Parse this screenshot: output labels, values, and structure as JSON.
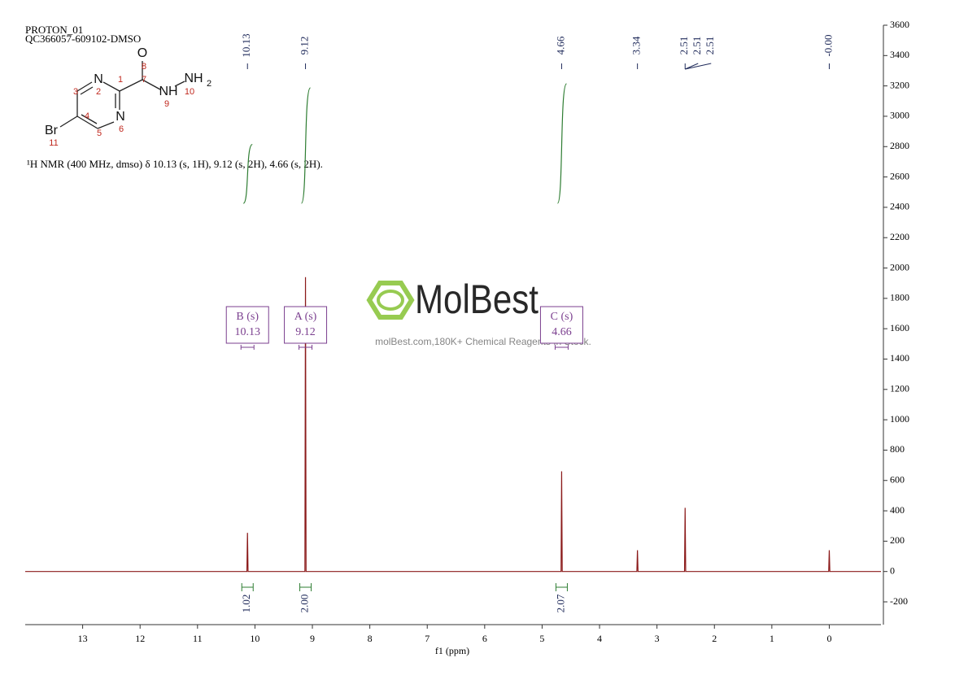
{
  "chart_data": {
    "type": "line",
    "header": [
      "PROTON_01",
      "QC366057-609102-DMSO"
    ],
    "description": "¹H NMR (400 MHz, dmso) δ 10.13 (s, 1H), 9.12 (s, 2H), 4.66 (s, 2H).",
    "x_label": "f1 (ppm)",
    "watermark": {
      "brand": "MolBest",
      "tagline": "molBest.com,180K+ Chemical Reagents In Stock."
    },
    "molecule": {
      "atom_labels": [
        "O",
        "N",
        "N",
        "NH",
        "NH",
        "2",
        "Br"
      ],
      "atom_numbers": [
        1,
        2,
        3,
        4,
        5,
        6,
        7,
        8,
        9,
        10,
        11
      ]
    },
    "x": [
      14,
      10.14,
      10.13,
      10.12,
      9.13,
      9.12,
      9.11,
      4.67,
      4.66,
      4.65,
      3.35,
      3.34,
      3.33,
      2.52,
      2.51,
      2.5,
      0.01,
      0,
      -0.01,
      -0.9
    ],
    "series": [
      {
        "name": "1H",
        "color": "#8b1a1a",
        "values": [
          0,
          0,
          255,
          0,
          0,
          1940,
          0,
          0,
          660,
          0,
          0,
          140,
          0,
          0,
          420,
          0,
          0,
          140,
          0,
          0
        ]
      }
    ],
    "peak_labels": [
      10.13,
      9.12,
      4.66,
      3.34,
      2.51,
      2.51,
      2.51,
      {
        "value": 0,
        "label": "-0.00"
      }
    ],
    "integrals": {
      "x": [
        10.13,
        9.12,
        4.66
      ],
      "values": [
        1.02,
        2,
        2.07
      ],
      "value_labels": [
        "1.02",
        "2.00",
        "2.07"
      ],
      "color": "#2e7d32"
    },
    "multiplets": {
      "names": [
        "B (s)",
        "A (s)",
        "C (s)"
      ],
      "x": [
        10.13,
        9.12,
        4.66
      ],
      "color": "#7b3f8f"
    },
    "xlim": [
      14,
      -0.9
    ],
    "xticks": [
      13,
      12,
      11,
      10,
      9,
      8,
      7,
      6,
      5,
      4,
      3,
      2,
      1,
      0
    ],
    "ylim": [
      -350,
      3600
    ],
    "yticks": [
      -200,
      0,
      200,
      400,
      600,
      800,
      1000,
      1200,
      1400,
      1600,
      1800,
      2000,
      2200,
      2400,
      2600,
      2800,
      3000,
      3200,
      3400,
      3600
    ]
  }
}
